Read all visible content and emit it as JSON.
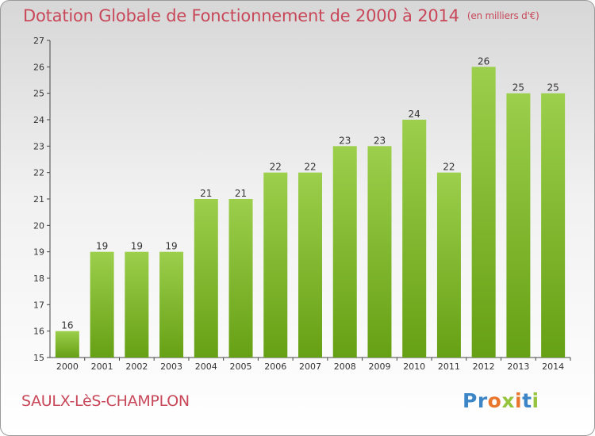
{
  "header": {
    "title": "Dotation Globale de Fonctionnement de 2000 à 2014",
    "subtitle": "(en milliers d'€)"
  },
  "footer": {
    "commune": "SAULX-LèS-CHAMPLON",
    "logo": [
      "Pr",
      "o",
      "x",
      "i",
      "t",
      "i"
    ]
  },
  "colors": {
    "bar_light": "#9ccf4c",
    "bar_dark": "#66a014",
    "title": "#c8485a"
  },
  "chart_data": {
    "type": "bar",
    "title": "Dotation Globale de Fonctionnement de 2000 à 2014",
    "subtitle": "(en milliers d'€)",
    "categories": [
      "2000",
      "2001",
      "2002",
      "2003",
      "2004",
      "2005",
      "2006",
      "2007",
      "2008",
      "2009",
      "2010",
      "2011",
      "2012",
      "2013",
      "2014"
    ],
    "values": [
      16,
      19,
      19,
      19,
      21,
      21,
      22,
      22,
      23,
      23,
      24,
      22,
      26,
      25,
      25
    ],
    "data_labels": [
      "16",
      "19",
      "19",
      "19",
      "21",
      "21",
      "22",
      "22",
      "23",
      "23",
      "24",
      "22",
      "26",
      "25",
      "25"
    ],
    "ylim": [
      15,
      27
    ],
    "yticks": [
      "15",
      "16",
      "17",
      "18",
      "19",
      "20",
      "21",
      "22",
      "23",
      "24",
      "25",
      "26",
      "27"
    ],
    "xlabel": "",
    "ylabel": "",
    "grid": false
  }
}
